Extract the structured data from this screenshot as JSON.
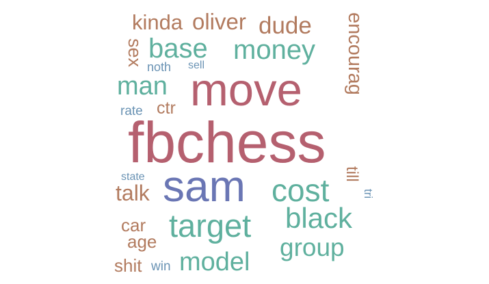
{
  "colors": {
    "red": "#b5606f",
    "teal": "#5fb09e",
    "brown": "#b27b5f",
    "blue": "#6a76b4",
    "steel": "#6a93b4"
  },
  "words": [
    {
      "text": "fbchess",
      "color": "#b5606f"
    },
    {
      "text": "move",
      "color": "#b5606f"
    },
    {
      "text": "sam",
      "color": "#6a76b4"
    },
    {
      "text": "target",
      "color": "#5fb09e"
    },
    {
      "text": "cost",
      "color": "#5fb09e"
    },
    {
      "text": "black",
      "color": "#5fb09e"
    },
    {
      "text": "money",
      "color": "#5fb09e"
    },
    {
      "text": "base",
      "color": "#5fb09e"
    },
    {
      "text": "model",
      "color": "#5fb09e"
    },
    {
      "text": "group",
      "color": "#5fb09e"
    },
    {
      "text": "man",
      "color": "#5fb09e"
    },
    {
      "text": "dude",
      "color": "#b27b5f"
    },
    {
      "text": "oliver",
      "color": "#b27b5f"
    },
    {
      "text": "kinda",
      "color": "#b27b5f"
    },
    {
      "text": "encourag",
      "color": "#b27b5f"
    },
    {
      "text": "sex",
      "color": "#b27b5f"
    },
    {
      "text": "talk",
      "color": "#b27b5f"
    },
    {
      "text": "ctr",
      "color": "#b27b5f"
    },
    {
      "text": "car",
      "color": "#b27b5f"
    },
    {
      "text": "age",
      "color": "#b27b5f"
    },
    {
      "text": "shit",
      "color": "#b27b5f"
    },
    {
      "text": "till",
      "color": "#b27b5f"
    },
    {
      "text": "noth",
      "color": "#6a93b4"
    },
    {
      "text": "sell",
      "color": "#6a93b4"
    },
    {
      "text": "rate",
      "color": "#6a93b4"
    },
    {
      "text": "state",
      "color": "#6a93b4"
    },
    {
      "text": "win",
      "color": "#6a93b4"
    },
    {
      "text": "tri",
      "color": "#6a93b4"
    }
  ]
}
